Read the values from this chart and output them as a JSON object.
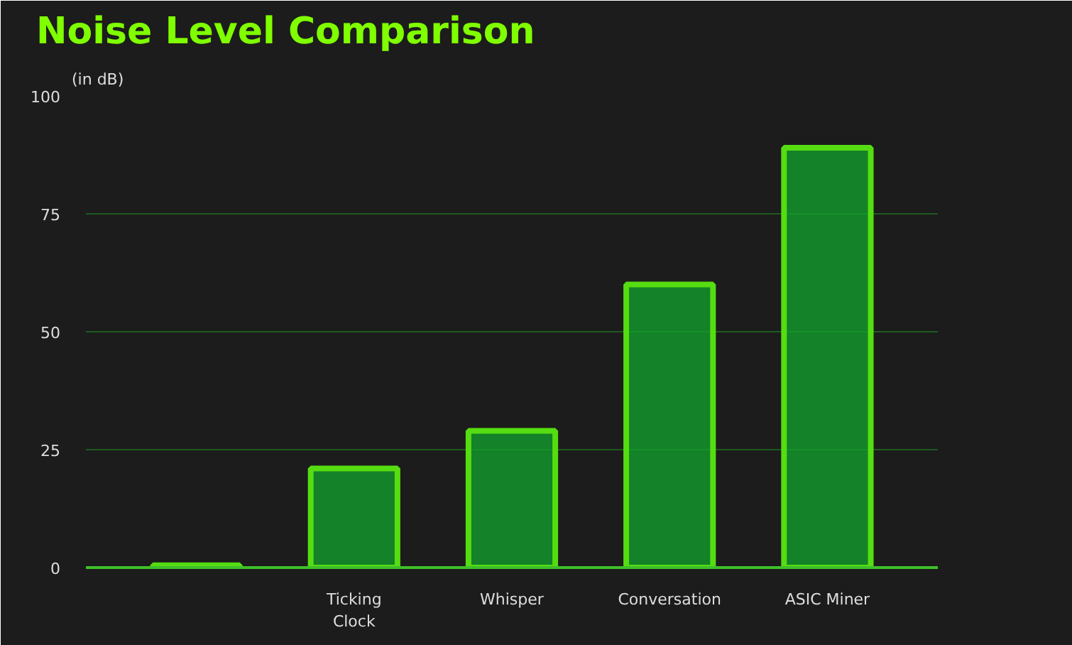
{
  "chart_data": {
    "type": "bar",
    "title": "Noise Level Comparison",
    "ylabel": "(in dB)",
    "categories": [
      null,
      "Ticking\nClock",
      "Whisper",
      "Conversation",
      "ASIC Miner"
    ],
    "values": [
      0.5,
      21,
      29,
      60,
      89
    ],
    "color": "#12a42c",
    "ylim": [
      0,
      100
    ],
    "yticks": [
      0,
      25,
      50,
      75,
      100
    ],
    "grid": "y"
  }
}
